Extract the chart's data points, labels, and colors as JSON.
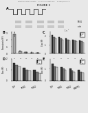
{
  "title": "FIGURE 3",
  "header_text": "Patent Application Publication       May 24, 2007  Sheet 3 of 8       US 2007/0113311 A1",
  "bg_color": "#e8e8e8",
  "text_color": "#000000",
  "panel_A_label": "A",
  "panel_B_label": "B",
  "panel_C_label": "C",
  "panel_D_label": "D",
  "panel_E_label": "E",
  "panel_B": {
    "bars": [
      2.8,
      0.35,
      0.22,
      0.18,
      0.12
    ],
    "bar_color": "#aaaaaa",
    "error": [
      0.3,
      0.05,
      0.04,
      0.03,
      0.02
    ],
    "ylabel": "Exocytosis (fF)",
    "ylim": [
      0,
      3.2
    ],
    "yticks": [
      0,
      1,
      2,
      3
    ],
    "xticks": [
      "1",
      "2",
      "3",
      "4",
      "5"
    ],
    "xlabel": "Depolarization #\n(200 ms, 1 Hz)"
  },
  "panel_C": {
    "n_groups": 5,
    "values": [
      [
        2.1,
        1.9,
        1.7,
        1.6,
        1.5
      ],
      [
        1.9,
        1.7,
        1.6,
        1.5,
        1.4
      ],
      [
        1.7,
        1.6,
        1.5,
        1.4,
        1.3
      ]
    ],
    "bar_colors": [
      "#333333",
      "#777777",
      "#cccccc"
    ],
    "ylabel": "Exo (fF)",
    "ylim": [
      0,
      2.5
    ],
    "yticks": [
      0,
      1,
      2
    ],
    "xticks": [
      "1",
      "2",
      "3",
      "4",
      "5"
    ],
    "xlabel": "Depolarization #\n(200 ms, 1 Hz)",
    "legend": [
      "ctrl",
      "IP6",
      "IP7"
    ]
  },
  "panel_D": {
    "n_groups": 3,
    "values": [
      [
        1.6,
        1.2,
        1.0
      ],
      [
        1.4,
        1.0,
        0.8
      ],
      [
        1.3,
        0.9,
        0.7
      ]
    ],
    "bar_colors": [
      "#333333",
      "#777777",
      "#cccccc"
    ],
    "ylabel": "Exo (fF)",
    "ylim": [
      0,
      2.0
    ],
    "yticks": [
      0,
      1,
      2
    ],
    "xticks": [
      "GFP",
      "IP6K1",
      "IP6K2"
    ],
    "legend": [
      "ctrl",
      "IP6",
      "IP7"
    ]
  },
  "panel_E": {
    "n_groups": 4,
    "values": [
      [
        1.4,
        1.1,
        1.0,
        0.9
      ],
      [
        1.2,
        1.0,
        0.85,
        0.75
      ],
      [
        1.1,
        0.9,
        0.75,
        0.65
      ]
    ],
    "bar_colors": [
      "#333333",
      "#777777",
      "#cccccc"
    ],
    "ylabel": "Exo (fF)",
    "ylim": [
      0,
      1.8
    ],
    "yticks": [
      0,
      1
    ],
    "xticks": [
      "GFP",
      "IP6K1",
      "IP6K2",
      "MINPP1"
    ],
    "legend": [
      "ctrl",
      "IP6",
      "IP7"
    ]
  }
}
